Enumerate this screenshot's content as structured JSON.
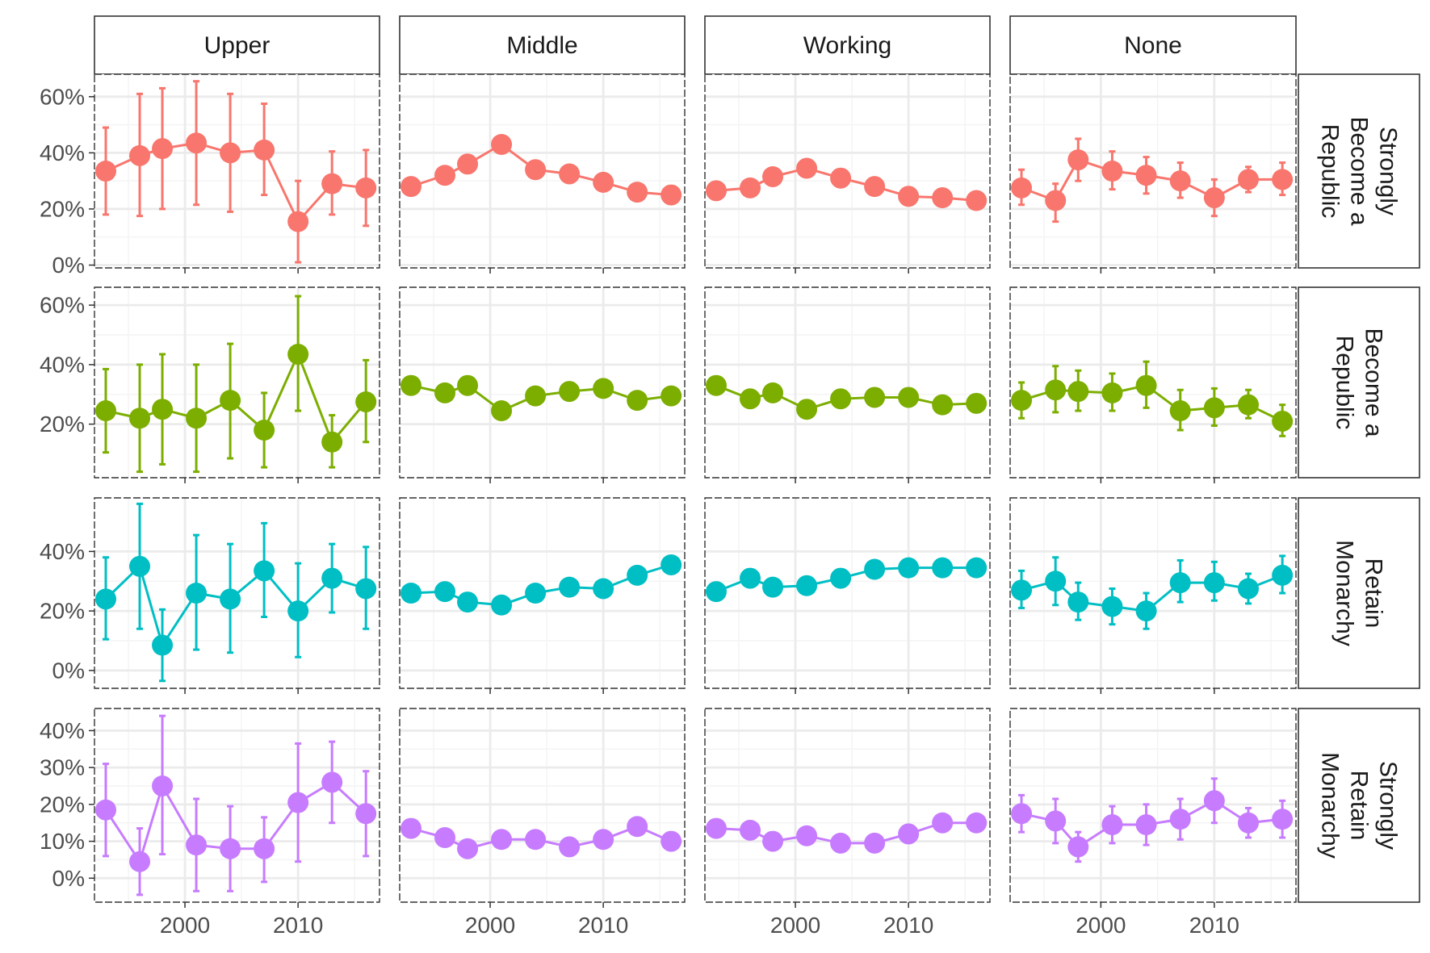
{
  "chart_data": {
    "type": "line",
    "x": [
      1993,
      1996,
      1998,
      2001,
      2004,
      2007,
      2010,
      2013,
      2016
    ],
    "x_ticks": [
      2000,
      2010
    ],
    "xlim": [
      1992,
      2017.2
    ],
    "col_facets": [
      "Upper",
      "Middle",
      "Working",
      "None"
    ],
    "error_bars": "shown for Upper and None panels",
    "rows": [
      {
        "label_lines": [
          "Strongly",
          "Become a",
          "Republic"
        ],
        "color": "#F8766D",
        "ylim": [
          -1,
          68
        ],
        "y_ticks": [
          0,
          20,
          40,
          60
        ],
        "y_tick_labels": [
          "0%",
          "20%",
          "40%",
          "60%"
        ],
        "series": [
          {
            "class": "Upper",
            "values": [
              33.5,
              39,
              41.5,
              43.5,
              40,
              41,
              15.5,
              29,
              27.5
            ],
            "lower": [
              18,
              17.5,
              20,
              21.5,
              19,
              25,
              1,
              18,
              14
            ],
            "upper": [
              49,
              61,
              63,
              65.5,
              61,
              57.5,
              30,
              40.5,
              41
            ]
          },
          {
            "class": "Middle",
            "values": [
              28,
              32,
              36,
              43,
              34,
              32.5,
              29.5,
              26,
              25
            ]
          },
          {
            "class": "Working",
            "values": [
              26.5,
              27.5,
              31.5,
              34.5,
              31,
              28,
              24.5,
              24,
              23
            ]
          },
          {
            "class": "None",
            "values": [
              27.5,
              23,
              37.5,
              33.5,
              32,
              30,
              24,
              30.5,
              30.5
            ],
            "lower": [
              21.5,
              15.5,
              30,
              27,
              25.5,
              24,
              17.5,
              26,
              25
            ],
            "upper": [
              34,
              29,
              45,
              40.5,
              38.5,
              36.5,
              30.5,
              35,
              36.5
            ]
          }
        ]
      },
      {
        "label_lines": [
          "Become a",
          "Republic"
        ],
        "color": "#7CAE00",
        "ylim": [
          2,
          66
        ],
        "y_ticks": [
          20,
          40,
          60
        ],
        "y_tick_labels": [
          "20%",
          "40%",
          "60%"
        ],
        "series": [
          {
            "class": "Upper",
            "values": [
              24.5,
              22,
              25,
              22,
              28,
              18,
              43.5,
              14,
              27.5
            ],
            "lower": [
              10.5,
              4,
              6.5,
              4,
              8.5,
              5.5,
              24.5,
              5.5,
              14
            ],
            "upper": [
              38.5,
              40,
              43.5,
              40,
              47,
              30.5,
              63,
              23,
              41.5
            ]
          },
          {
            "class": "Middle",
            "values": [
              33,
              30.5,
              33,
              24.5,
              29.5,
              31,
              32,
              28,
              29.5
            ]
          },
          {
            "class": "Working",
            "values": [
              33,
              28.5,
              30.5,
              25,
              28.5,
              29,
              29,
              26.5,
              27
            ]
          },
          {
            "class": "None",
            "values": [
              28,
              31.5,
              31,
              30.5,
              33,
              24.5,
              25.5,
              26.5,
              21
            ],
            "lower": [
              22,
              24,
              24.5,
              24.5,
              25.5,
              18,
              19.5,
              22,
              16
            ],
            "upper": [
              34,
              39.5,
              38,
              37,
              41,
              31.5,
              32,
              31.5,
              26.5
            ]
          }
        ]
      },
      {
        "label_lines": [
          "Retain",
          "Monarchy"
        ],
        "color": "#00BFC4",
        "ylim": [
          -6,
          58
        ],
        "y_ticks": [
          0,
          20,
          40
        ],
        "y_tick_labels": [
          "0%",
          "20%",
          "40%"
        ],
        "series": [
          {
            "class": "Upper",
            "values": [
              24,
              35,
              8.5,
              26,
              24,
              33.5,
              20,
              31,
              27.5
            ],
            "lower": [
              10.5,
              14,
              -3.5,
              7,
              6,
              18,
              4.5,
              19.5,
              14
            ],
            "upper": [
              38,
              56,
              20.5,
              45.5,
              42.5,
              49.5,
              36,
              42.5,
              41.5
            ]
          },
          {
            "class": "Middle",
            "values": [
              26,
              26.5,
              23,
              22,
              26,
              28,
              27.5,
              32,
              35.5
            ]
          },
          {
            "class": "Working",
            "values": [
              26.5,
              31,
              28,
              28.5,
              31,
              34,
              34.5,
              34.5,
              34.5
            ]
          },
          {
            "class": "None",
            "values": [
              27,
              30,
              23,
              21.5,
              20,
              29.5,
              29.5,
              27.5,
              32
            ],
            "lower": [
              21,
              22,
              17,
              15.5,
              14,
              23,
              23.5,
              22.5,
              26
            ],
            "upper": [
              33.5,
              38,
              29.5,
              27.5,
              26,
              37,
              36.5,
              32.5,
              38.5
            ]
          }
        ]
      },
      {
        "label_lines": [
          "Strongly",
          "Retain",
          "Monarchy"
        ],
        "color": "#C77CFF",
        "ylim": [
          -6.5,
          46
        ],
        "y_ticks": [
          0,
          10,
          20,
          30,
          40
        ],
        "y_tick_labels": [
          "0%",
          "10%",
          "20%",
          "30%",
          "40%"
        ],
        "series": [
          {
            "class": "Upper",
            "values": [
              18.5,
              4.5,
              25,
              9,
              8,
              8,
              20.5,
              26,
              17.5
            ],
            "lower": [
              6,
              -4.5,
              6.5,
              -3.5,
              -3.5,
              -1,
              4.5,
              15,
              6
            ],
            "upper": [
              31,
              13.5,
              44,
              21.5,
              19.5,
              16.5,
              36.5,
              37,
              29
            ]
          },
          {
            "class": "Middle",
            "values": [
              13.5,
              11,
              8,
              10.5,
              10.5,
              8.5,
              10.5,
              14,
              10
            ]
          },
          {
            "class": "Working",
            "values": [
              13.5,
              13,
              10,
              11.5,
              9.5,
              9.5,
              12,
              15,
              15
            ]
          },
          {
            "class": "None",
            "values": [
              17.5,
              15.5,
              8.5,
              14.5,
              14.5,
              16,
              21,
              15,
              16
            ],
            "lower": [
              12.5,
              9.5,
              4.5,
              9.5,
              9,
              10.5,
              15,
              11,
              11
            ],
            "upper": [
              22.5,
              21.5,
              12.5,
              19.5,
              20,
              21.5,
              27,
              19,
              21
            ]
          }
        ]
      }
    ]
  }
}
